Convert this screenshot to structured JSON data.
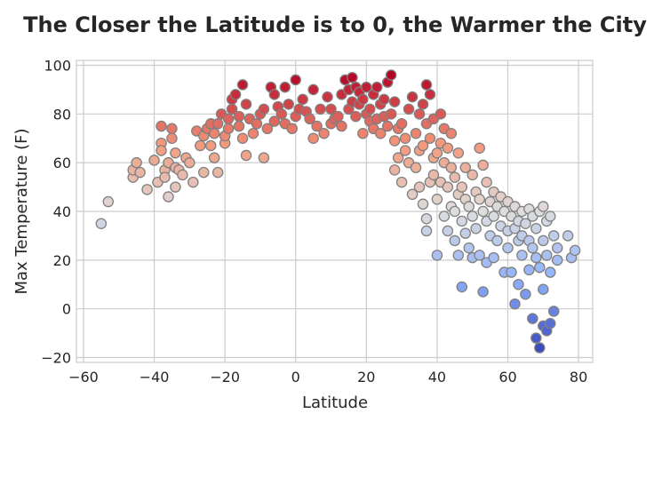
{
  "chart_data": {
    "type": "scatter",
    "title": "The Closer the Latitude is to 0, the Warmer the City",
    "xlabel": "Latitude",
    "ylabel": "Max Temperature (F)",
    "xlim": [
      -62,
      84
    ],
    "ylim": [
      -22,
      102
    ],
    "xticks": [
      -60,
      -40,
      -20,
      0,
      20,
      40,
      60,
      80
    ],
    "yticks": [
      -20,
      0,
      20,
      40,
      60,
      80,
      100
    ],
    "grid": true,
    "legend": "none",
    "colormap": "coolwarm",
    "color_range": [
      -16,
      96
    ],
    "marker_edge_color": "#808080",
    "points": [
      [
        -55,
        35
      ],
      [
        -53,
        44
      ],
      [
        -46,
        54
      ],
      [
        -46,
        57
      ],
      [
        -45,
        60
      ],
      [
        -44,
        56
      ],
      [
        -42,
        49
      ],
      [
        -40,
        61
      ],
      [
        -39,
        52
      ],
      [
        -38,
        75
      ],
      [
        -38,
        68
      ],
      [
        -38,
        65
      ],
      [
        -37,
        57
      ],
      [
        -37,
        54
      ],
      [
        -36,
        60
      ],
      [
        -36,
        46
      ],
      [
        -35,
        70
      ],
      [
        -35,
        74
      ],
      [
        -34,
        64
      ],
      [
        -34,
        58
      ],
      [
        -34,
        50
      ],
      [
        -33,
        57
      ],
      [
        -32,
        55
      ],
      [
        -31,
        62
      ],
      [
        -30,
        60
      ],
      [
        -29,
        52
      ],
      [
        -28,
        73
      ],
      [
        -27,
        67
      ],
      [
        -26,
        71
      ],
      [
        -26,
        56
      ],
      [
        -25,
        74
      ],
      [
        -24,
        76
      ],
      [
        -24,
        67
      ],
      [
        -23,
        72
      ],
      [
        -23,
        62
      ],
      [
        -22,
        76
      ],
      [
        -22,
        56
      ],
      [
        -21,
        80
      ],
      [
        -20,
        68
      ],
      [
        -20,
        71
      ],
      [
        -19,
        74
      ],
      [
        -19,
        78
      ],
      [
        -18,
        86
      ],
      [
        -18,
        82
      ],
      [
        -17,
        88
      ],
      [
        -16,
        79
      ],
      [
        -16,
        75
      ],
      [
        -15,
        70
      ],
      [
        -15,
        92
      ],
      [
        -14,
        84
      ],
      [
        -14,
        63
      ],
      [
        -13,
        78
      ],
      [
        -12,
        72
      ],
      [
        -11,
        76
      ],
      [
        -10,
        80
      ],
      [
        -9,
        82
      ],
      [
        -9,
        62
      ],
      [
        -8,
        74
      ],
      [
        -7,
        91
      ],
      [
        -6,
        88
      ],
      [
        -6,
        77
      ],
      [
        -5,
        83
      ],
      [
        -4,
        80
      ],
      [
        -3,
        91
      ],
      [
        -3,
        76
      ],
      [
        -2,
        84
      ],
      [
        -1,
        74
      ],
      [
        0,
        79
      ],
      [
        0,
        94
      ],
      [
        1,
        82
      ],
      [
        2,
        86
      ],
      [
        3,
        81
      ],
      [
        4,
        78
      ],
      [
        5,
        90
      ],
      [
        5,
        70
      ],
      [
        6,
        75
      ],
      [
        7,
        82
      ],
      [
        8,
        72
      ],
      [
        9,
        87
      ],
      [
        10,
        76
      ],
      [
        10,
        82
      ],
      [
        11,
        78
      ],
      [
        12,
        79
      ],
      [
        13,
        88
      ],
      [
        13,
        75
      ],
      [
        14,
        94
      ],
      [
        15,
        82
      ],
      [
        15,
        90
      ],
      [
        16,
        85
      ],
      [
        16,
        95
      ],
      [
        17,
        91
      ],
      [
        17,
        79
      ],
      [
        18,
        89
      ],
      [
        18,
        84
      ],
      [
        19,
        72
      ],
      [
        19,
        86
      ],
      [
        20,
        91
      ],
      [
        20,
        80
      ],
      [
        21,
        77
      ],
      [
        21,
        82
      ],
      [
        22,
        74
      ],
      [
        22,
        88
      ],
      [
        23,
        91
      ],
      [
        23,
        78
      ],
      [
        24,
        84
      ],
      [
        24,
        72
      ],
      [
        25,
        86
      ],
      [
        25,
        79
      ],
      [
        26,
        93
      ],
      [
        26,
        75
      ],
      [
        27,
        80
      ],
      [
        27,
        96
      ],
      [
        28,
        85
      ],
      [
        28,
        69
      ],
      [
        28,
        57
      ],
      [
        29,
        74
      ],
      [
        29,
        62
      ],
      [
        30,
        76
      ],
      [
        30,
        52
      ],
      [
        31,
        65
      ],
      [
        31,
        70
      ],
      [
        32,
        82
      ],
      [
        32,
        60
      ],
      [
        33,
        87
      ],
      [
        33,
        47
      ],
      [
        34,
        72
      ],
      [
        34,
        58
      ],
      [
        35,
        80
      ],
      [
        35,
        65
      ],
      [
        35,
        50
      ],
      [
        36,
        84
      ],
      [
        36,
        67
      ],
      [
        36,
        43
      ],
      [
        37,
        92
      ],
      [
        37,
        76
      ],
      [
        37,
        37
      ],
      [
        37,
        32
      ],
      [
        38,
        88
      ],
      [
        38,
        70
      ],
      [
        38,
        52
      ],
      [
        39,
        78
      ],
      [
        39,
        62
      ],
      [
        39,
        55
      ],
      [
        40,
        64
      ],
      [
        40,
        45
      ],
      [
        40,
        22
      ],
      [
        41,
        80
      ],
      [
        41,
        68
      ],
      [
        41,
        52
      ],
      [
        42,
        74
      ],
      [
        42,
        60
      ],
      [
        42,
        38
      ],
      [
        43,
        66
      ],
      [
        43,
        50
      ],
      [
        43,
        32
      ],
      [
        44,
        72
      ],
      [
        44,
        58
      ],
      [
        44,
        42
      ],
      [
        45,
        54
      ],
      [
        45,
        40
      ],
      [
        45,
        28
      ],
      [
        46,
        64
      ],
      [
        46,
        47
      ],
      [
        46,
        22
      ],
      [
        47,
        50
      ],
      [
        47,
        36
      ],
      [
        47,
        9
      ],
      [
        48,
        58
      ],
      [
        48,
        45
      ],
      [
        48,
        31
      ],
      [
        49,
        42
      ],
      [
        49,
        25
      ],
      [
        50,
        55
      ],
      [
        50,
        38
      ],
      [
        50,
        21
      ],
      [
        51,
        48
      ],
      [
        51,
        33
      ],
      [
        52,
        66
      ],
      [
        52,
        45
      ],
      [
        52,
        22
      ],
      [
        53,
        59
      ],
      [
        53,
        40
      ],
      [
        53,
        7
      ],
      [
        54,
        52
      ],
      [
        54,
        36
      ],
      [
        54,
        19
      ],
      [
        55,
        44
      ],
      [
        55,
        30
      ],
      [
        56,
        48
      ],
      [
        56,
        38
      ],
      [
        56,
        21
      ],
      [
        57,
        42
      ],
      [
        57,
        28
      ],
      [
        58,
        46
      ],
      [
        58,
        34
      ],
      [
        59,
        40
      ],
      [
        59,
        15
      ],
      [
        60,
        44
      ],
      [
        60,
        32
      ],
      [
        60,
        25
      ],
      [
        61,
        38
      ],
      [
        61,
        15
      ],
      [
        62,
        42
      ],
      [
        62,
        33
      ],
      [
        62,
        2
      ],
      [
        63,
        36
      ],
      [
        63,
        28
      ],
      [
        63,
        10
      ],
      [
        64,
        40
      ],
      [
        64,
        30
      ],
      [
        64,
        22
      ],
      [
        65,
        35
      ],
      [
        65,
        6
      ],
      [
        66,
        41
      ],
      [
        66,
        28
      ],
      [
        66,
        16
      ],
      [
        67,
        38
      ],
      [
        67,
        25
      ],
      [
        67,
        -4
      ],
      [
        68,
        33
      ],
      [
        68,
        21
      ],
      [
        68,
        -12
      ],
      [
        69,
        40
      ],
      [
        69,
        17
      ],
      [
        69,
        -16
      ],
      [
        70,
        42
      ],
      [
        70,
        28
      ],
      [
        70,
        8
      ],
      [
        70,
        -7
      ],
      [
        71,
        36
      ],
      [
        71,
        22
      ],
      [
        71,
        -9
      ],
      [
        72,
        38
      ],
      [
        72,
        15
      ],
      [
        72,
        -6
      ],
      [
        73,
        30
      ],
      [
        73,
        -1
      ],
      [
        74,
        25
      ],
      [
        74,
        20
      ],
      [
        77,
        30
      ],
      [
        78,
        21
      ],
      [
        79,
        24
      ]
    ]
  }
}
